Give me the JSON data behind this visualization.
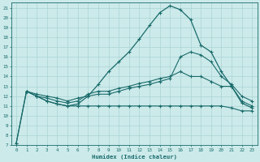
{
  "xlabel": "Humidex (Indice chaleur)",
  "bg_color": "#cceaea",
  "grid_color": "#aad4d4",
  "line_color": "#1a6b6b",
  "xlim": [
    -0.5,
    23.5
  ],
  "ylim": [
    7,
    21.5
  ],
  "yticks": [
    7,
    8,
    9,
    10,
    11,
    12,
    13,
    14,
    15,
    16,
    17,
    18,
    19,
    20,
    21
  ],
  "xticks": [
    0,
    1,
    2,
    3,
    4,
    5,
    6,
    7,
    8,
    9,
    10,
    11,
    12,
    13,
    14,
    15,
    16,
    17,
    18,
    19,
    20,
    21,
    22,
    23
  ],
  "line1_x": [
    0,
    1,
    2,
    3,
    4,
    5,
    6,
    7,
    8,
    9,
    10,
    11,
    12,
    13,
    14,
    15,
    16,
    17,
    18,
    19,
    20,
    21,
    22,
    23
  ],
  "line1_y": [
    7.2,
    12.5,
    12.0,
    11.5,
    11.2,
    11.0,
    11.2,
    12.0,
    13.2,
    14.5,
    15.5,
    16.5,
    17.8,
    19.2,
    20.5,
    21.2,
    20.8,
    19.8,
    17.2,
    16.5,
    14.5,
    13.0,
    11.3,
    10.8
  ],
  "line2_x": [
    0,
    1,
    2,
    3,
    4,
    5,
    6,
    7,
    8,
    9,
    10,
    11,
    12,
    13,
    14,
    15,
    16,
    17,
    18,
    19,
    20,
    21,
    22,
    23
  ],
  "line2_y": [
    7.2,
    12.5,
    12.0,
    11.5,
    11.2,
    11.0,
    11.0,
    11.0,
    11.0,
    11.0,
    11.0,
    11.0,
    11.0,
    11.0,
    11.0,
    11.0,
    11.0,
    11.0,
    11.0,
    11.0,
    11.0,
    10.8,
    10.5,
    10.5
  ],
  "line3_x": [
    1,
    2,
    3,
    4,
    5,
    6,
    7,
    8,
    9,
    10,
    11,
    12,
    13,
    14,
    15,
    16,
    17,
    18,
    19,
    20,
    21,
    22,
    23
  ],
  "line3_y": [
    12.5,
    12.0,
    11.8,
    11.5,
    11.3,
    11.5,
    12.2,
    12.5,
    12.5,
    12.8,
    13.0,
    13.3,
    13.5,
    13.8,
    14.0,
    14.5,
    14.0,
    14.0,
    13.5,
    13.0,
    13.0,
    11.5,
    11.0
  ],
  "line4_x": [
    1,
    2,
    3,
    4,
    5,
    6,
    7,
    8,
    9,
    10,
    11,
    12,
    13,
    14,
    15,
    16,
    17,
    18,
    19,
    20,
    21,
    22,
    23
  ],
  "line4_y": [
    12.5,
    12.2,
    12.0,
    11.8,
    11.5,
    11.8,
    12.0,
    12.2,
    12.2,
    12.5,
    12.8,
    13.0,
    13.2,
    13.5,
    13.8,
    16.0,
    16.5,
    16.2,
    15.5,
    14.0,
    13.2,
    12.0,
    11.5
  ]
}
